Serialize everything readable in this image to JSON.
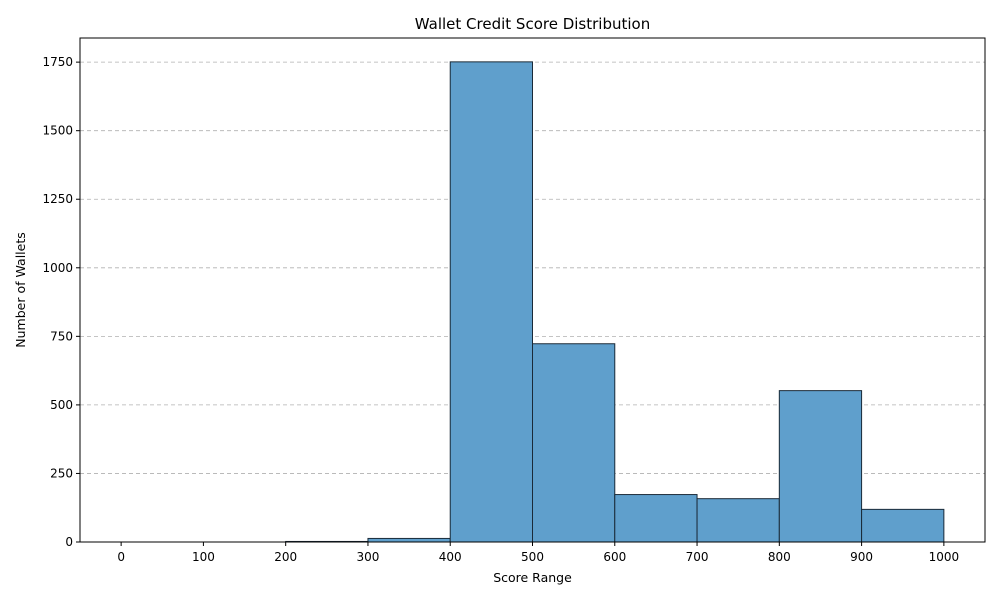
{
  "chart_data": {
    "type": "bar",
    "title": "Wallet Credit Score Distribution",
    "xlabel": "Score Range",
    "ylabel": "Number of Wallets",
    "bins": [
      {
        "start": 0,
        "end": 100,
        "count": 0
      },
      {
        "start": 100,
        "end": 200,
        "count": 0
      },
      {
        "start": 200,
        "end": 300,
        "count": 2
      },
      {
        "start": 300,
        "end": 400,
        "count": 13
      },
      {
        "start": 400,
        "end": 500,
        "count": 1751
      },
      {
        "start": 500,
        "end": 600,
        "count": 723
      },
      {
        "start": 600,
        "end": 700,
        "count": 173
      },
      {
        "start": 700,
        "end": 800,
        "count": 158
      },
      {
        "start": 800,
        "end": 900,
        "count": 552
      },
      {
        "start": 900,
        "end": 1000,
        "count": 119
      }
    ],
    "xlim": [
      -50,
      1050
    ],
    "ylim": [
      0,
      1838
    ],
    "xticks": [
      "0",
      "100",
      "200",
      "300",
      "400",
      "500",
      "600",
      "700",
      "800",
      "900",
      "1000"
    ],
    "yticks": [
      "0",
      "250",
      "500",
      "750",
      "1000",
      "1250",
      "1500",
      "1750"
    ],
    "grid": "y-dashed",
    "bar_color": "#5f9fcc",
    "bar_edge_color": "#1a2a38"
  }
}
